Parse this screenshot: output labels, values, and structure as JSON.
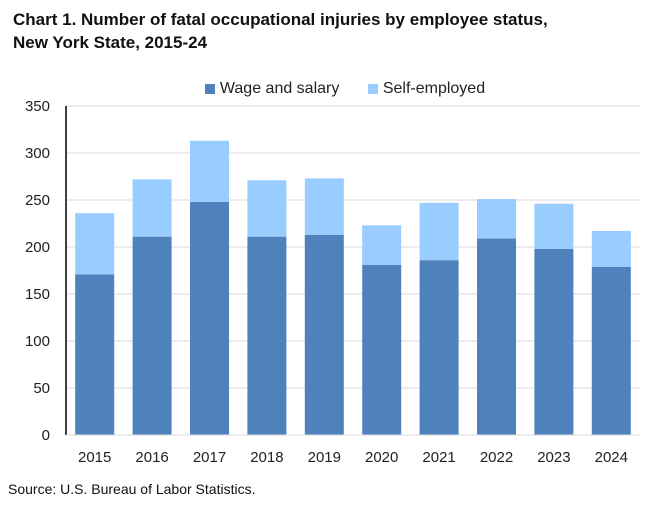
{
  "chart_data": {
    "type": "bar",
    "stacked": true,
    "title": "Chart 1. Number of fatal occupational injuries by employee status,\nNew York State, 2015-24",
    "categories": [
      "2015",
      "2016",
      "2017",
      "2018",
      "2019",
      "2020",
      "2021",
      "2022",
      "2023",
      "2024"
    ],
    "series": [
      {
        "name": "Wage and salary",
        "color": "#4f81bd",
        "values": [
          171,
          211,
          248,
          211,
          213,
          181,
          186,
          209,
          198,
          179
        ]
      },
      {
        "name": "Self-employed",
        "color": "#99ccff",
        "values": [
          65,
          61,
          65,
          60,
          60,
          42,
          61,
          42,
          48,
          38
        ]
      }
    ],
    "ylim": [
      0,
      350
    ],
    "yticks": [
      0,
      50,
      100,
      150,
      200,
      250,
      300,
      350
    ],
    "grid": true,
    "legend_position": "top",
    "xlabel": "",
    "ylabel": ""
  },
  "source": "Source: U.S. Bureau of Labor Statistics."
}
